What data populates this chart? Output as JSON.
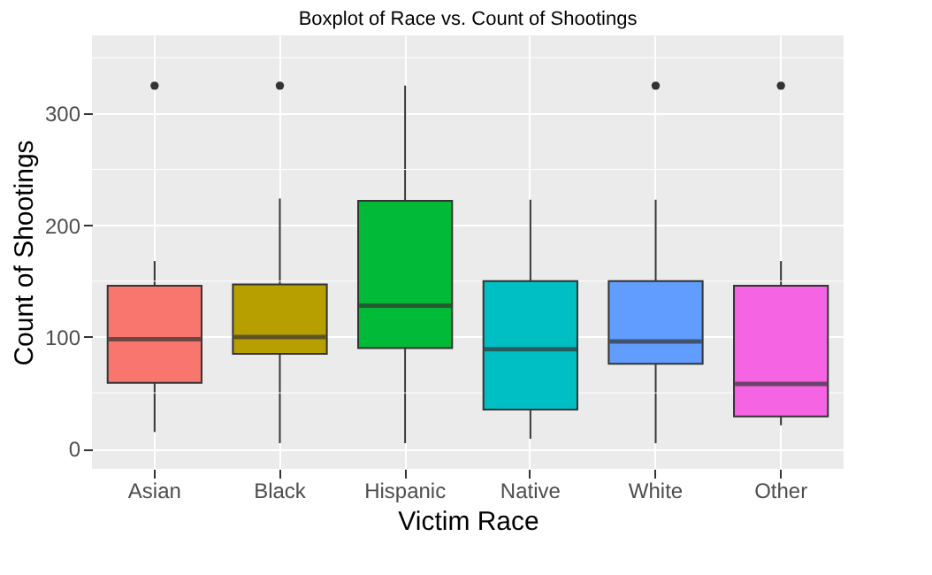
{
  "chart_data": {
    "type": "box",
    "title": "Boxplot of Race vs. Count of Shootings",
    "xlabel": "Victim Race",
    "ylabel": "Count of Shootings",
    "categories": [
      "Asian",
      "Black",
      "Hispanic",
      "Native",
      "White",
      "Other"
    ],
    "colors": [
      "#f8766d",
      "#b79f00",
      "#00ba38",
      "#00bfc4",
      "#619cff",
      "#f564e3"
    ],
    "boxes": [
      {
        "low": 15,
        "q1": 59,
        "median": 98,
        "q3": 146,
        "high": 168,
        "outliers": [
          325
        ]
      },
      {
        "low": 5,
        "q1": 85,
        "median": 100,
        "q3": 147,
        "high": 224,
        "outliers": [
          325
        ]
      },
      {
        "low": 5,
        "q1": 90,
        "median": 128,
        "q3": 222,
        "high": 325
      },
      {
        "low": 9,
        "q1": 35,
        "median": 89,
        "q3": 150,
        "high": 223
      },
      {
        "low": 5,
        "q1": 76,
        "median": 96,
        "q3": 150,
        "high": 223,
        "outliers": [
          325
        ]
      },
      {
        "low": 21,
        "q1": 29,
        "median": 58,
        "q3": 146,
        "high": 168,
        "outliers": [
          325
        ]
      }
    ],
    "ylim": [
      -18,
      370
    ],
    "yticks": [
      0,
      100,
      200,
      300
    ],
    "grid": true,
    "legend": false
  }
}
